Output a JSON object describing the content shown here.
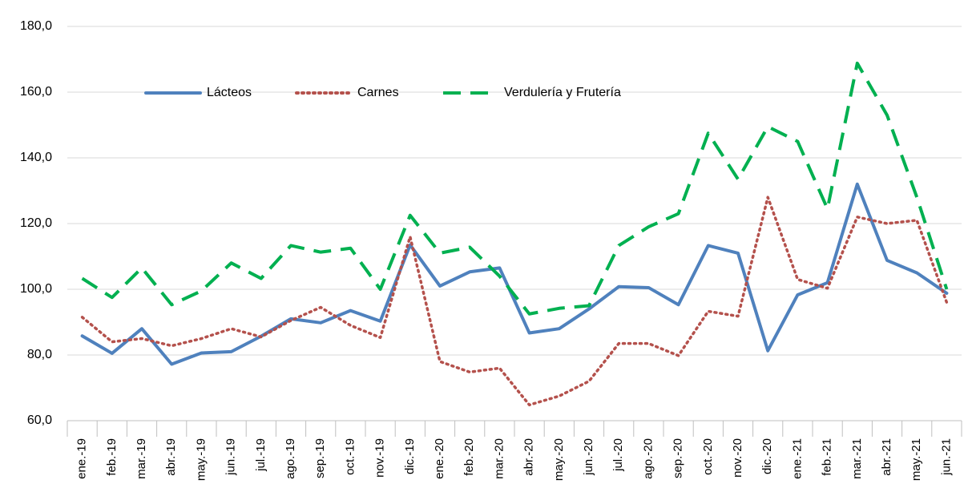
{
  "chart_data": {
    "type": "line",
    "categories": [
      "ene.-19",
      "feb.-19",
      "mar.-19",
      "abr.-19",
      "may.-19",
      "jun.-19",
      "jul.-19",
      "ago.-19",
      "sep.-19",
      "oct.-19",
      "nov.-19",
      "dic.-19",
      "ene.-20",
      "feb.-20",
      "mar.-20",
      "abr.-20",
      "may.-20",
      "jun.-20",
      "jul.-20",
      "ago.-20",
      "sep.-20",
      "oct.-20",
      "nov.-20",
      "dic.-20",
      "ene.-21",
      "feb.-21",
      "mar.-21",
      "abr.-21",
      "may.-21",
      "jun.-21"
    ],
    "series": [
      {
        "name": "Lácteos",
        "color": "#4f81bd",
        "style": "solid",
        "values": [
          85.8,
          80.5,
          88,
          77.2,
          80.6,
          81,
          85.7,
          91,
          89.8,
          93.5,
          90.3,
          113.5,
          101,
          105.3,
          106.5,
          86.7,
          88,
          94,
          100.8,
          100.5,
          95.3,
          113.3,
          111,
          81.3,
          98.3,
          102,
          132,
          108.8,
          105,
          98.8
        ]
      },
      {
        "name": "Carnes",
        "color": "#b4514c",
        "style": "dotted",
        "values": [
          91.5,
          84,
          85,
          82.8,
          85,
          88,
          85.5,
          90.5,
          94.5,
          89,
          85.3,
          116,
          78,
          74.8,
          76,
          64.8,
          67.5,
          72,
          83.5,
          83.5,
          79.8,
          93.3,
          91.8,
          128,
          103,
          100.3,
          122,
          120,
          121,
          96
        ]
      },
      {
        "name": "Verdulería y Frutería",
        "color": "#00b050",
        "style": "dashed",
        "values": [
          103.3,
          97.5,
          106.5,
          95.3,
          99.5,
          108,
          103.3,
          113.3,
          111.3,
          112.5,
          100,
          122.5,
          111,
          112.8,
          104,
          92.5,
          94.2,
          95,
          113.3,
          119,
          123,
          147.5,
          133.5,
          149.5,
          145,
          124.5,
          168.8,
          153,
          128,
          100
        ]
      }
    ],
    "ylim": [
      60,
      180
    ],
    "yticks": [
      {
        "value": 60,
        "label": "60,0"
      },
      {
        "value": 80,
        "label": "80,0"
      },
      {
        "value": 100,
        "label": "100,0"
      },
      {
        "value": 120,
        "label": "120,0"
      },
      {
        "value": 140,
        "label": "140,0"
      },
      {
        "value": 160,
        "label": "160,0"
      },
      {
        "value": 180,
        "label": "180,0"
      }
    ],
    "grid": true,
    "legend": "top"
  }
}
